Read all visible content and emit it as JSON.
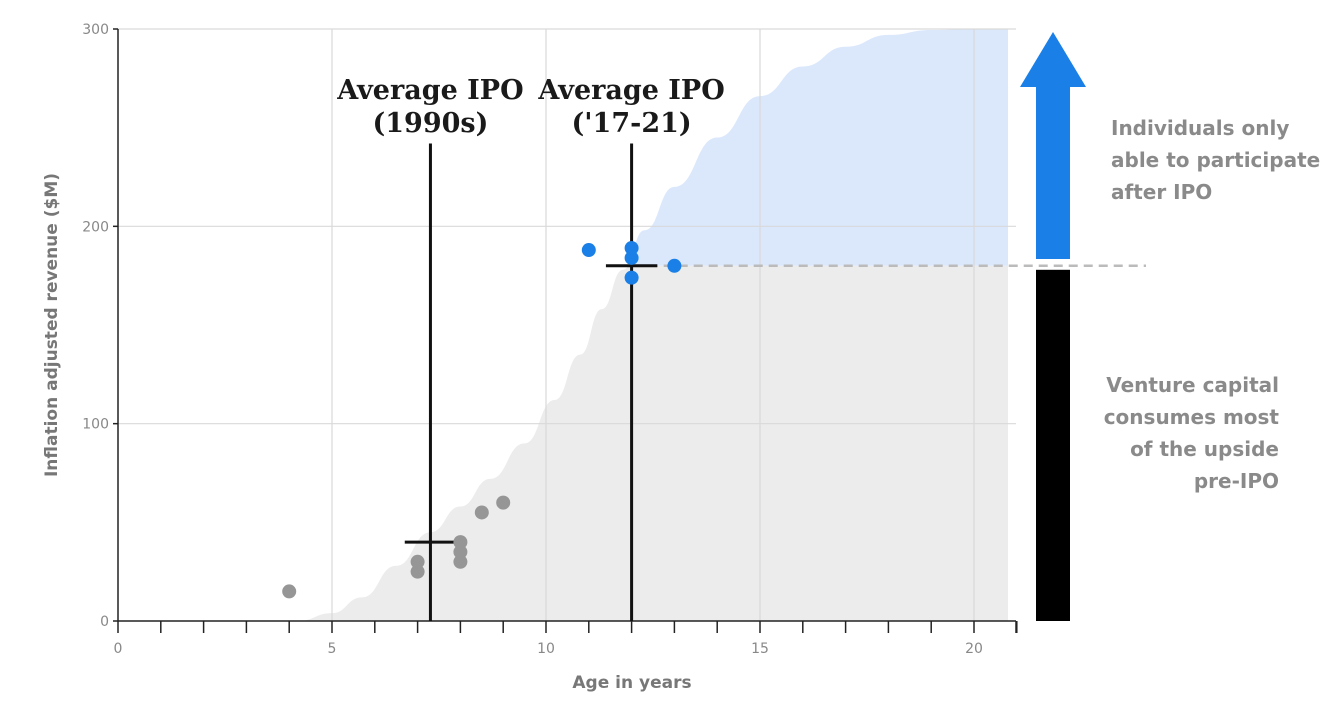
{
  "chart_data": {
    "type": "scatter",
    "xlabel": "Age in years",
    "ylabel": "Inflation adjusted revenue ($M)",
    "xlim": [
      0,
      21
    ],
    "ylim": [
      0,
      300
    ],
    "x_ticks": [
      0,
      5,
      10,
      15,
      20
    ],
    "y_ticks": [
      0,
      100,
      200,
      300
    ],
    "x_minor_step": 1,
    "grid": "vertical at 5,10,15,20; horizontal at 100,200,300",
    "series": [
      {
        "name": "1990s IPOs",
        "color": "#969696",
        "points": [
          [
            4,
            15
          ],
          [
            7,
            30
          ],
          [
            7,
            25
          ],
          [
            8,
            40
          ],
          [
            8,
            35
          ],
          [
            8,
            30
          ],
          [
            8.5,
            55
          ],
          [
            9,
            60
          ]
        ]
      },
      {
        "name": "2017-21 IPOs",
        "color": "#1a7fe6",
        "points": [
          [
            11,
            188
          ],
          [
            12,
            189
          ],
          [
            12,
            184
          ],
          [
            12,
            174
          ],
          [
            13,
            180
          ]
        ]
      }
    ],
    "area_curve": {
      "description": "S-shaped growth curve; below curve up to IPO level shaded grey, above shaded light blue",
      "points": [
        [
          4.2,
          0
        ],
        [
          5,
          4
        ],
        [
          5.7,
          12
        ],
        [
          6.5,
          28
        ],
        [
          7.3,
          45
        ],
        [
          8,
          58
        ],
        [
          8.7,
          72
        ],
        [
          9.5,
          90
        ],
        [
          10.2,
          112
        ],
        [
          10.8,
          135
        ],
        [
          11.3,
          158
        ],
        [
          11.8,
          178
        ],
        [
          12.3,
          198
        ],
        [
          13,
          220
        ],
        [
          14,
          245
        ],
        [
          15,
          266
        ],
        [
          16,
          281
        ],
        [
          17,
          291
        ],
        [
          18,
          297
        ],
        [
          19,
          299.5
        ],
        [
          20,
          300
        ],
        [
          21,
          300
        ]
      ],
      "lower_color": "#ececec",
      "upper_color": "#dbe8fc"
    },
    "ipo_markers": [
      {
        "x": 7.3,
        "y": 40,
        "line_top": 242,
        "hbar_from": 6.7,
        "hbar_to": 7.9,
        "label_lines": [
          "Average IPO",
          "(1990s)"
        ]
      },
      {
        "x": 12,
        "y": 180,
        "line_top": 242,
        "hbar_from": 11.4,
        "hbar_to": 12.6,
        "label_lines": [
          "Average IPO",
          "('17-21)"
        ]
      }
    ],
    "ipo_level": 180,
    "annotations": {
      "upper_text": [
        "Individuals only",
        "able to participate",
        "after IPO"
      ],
      "lower_text": [
        "Venture capital",
        "consumes most",
        "of the upside",
        "pre-IPO"
      ],
      "arrow_color": "#1a7fe6",
      "bar_color": "#000000",
      "dashed_color": "#bbbbbb"
    },
    "colors": {
      "axis": "#222222",
      "grid": "#d9d9d9",
      "marker_line": "#111111"
    }
  }
}
